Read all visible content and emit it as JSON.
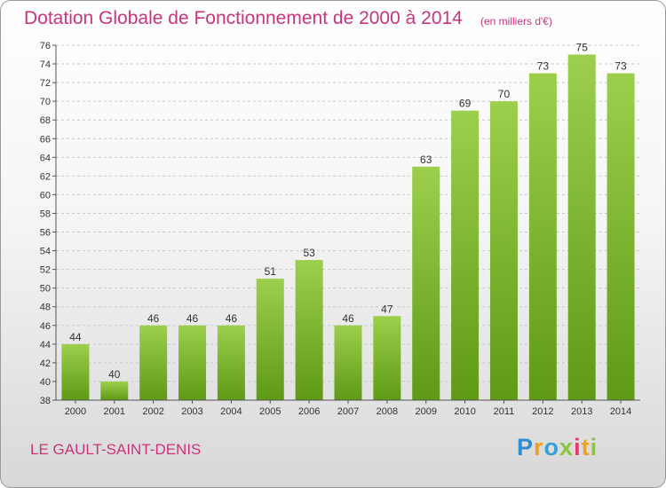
{
  "chart_data": {
    "type": "bar",
    "title": "Dotation Globale de Fonctionnement de 2000 à 2014",
    "subtitle": "(en milliers d'€)",
    "categories": [
      "2000",
      "2001",
      "2002",
      "2003",
      "2004",
      "2005",
      "2006",
      "2007",
      "2008",
      "2009",
      "2010",
      "2011",
      "2012",
      "2013",
      "2014"
    ],
    "values": [
      44,
      40,
      46,
      46,
      46,
      51,
      53,
      46,
      47,
      63,
      69,
      70,
      73,
      75,
      73
    ],
    "ylim": [
      38,
      76
    ],
    "yticks": [
      38,
      40,
      42,
      44,
      46,
      48,
      50,
      52,
      54,
      56,
      58,
      60,
      62,
      64,
      66,
      68,
      70,
      72,
      74,
      76
    ],
    "grid": "horizontal dashed",
    "bar_color_top": "#9ccf4c",
    "bar_color_bottom": "#5e9a16"
  },
  "commune": "LE GAULT-SAINT-DENIS",
  "logo": {
    "text": "Proxiti",
    "letters": [
      "P",
      "r",
      "o",
      "x",
      "i",
      "t",
      "i"
    ],
    "colors": [
      "#2f8fd0",
      "#f0a020",
      "#3aa0d8",
      "#8cc63f",
      "#e23a6e",
      "#f0a020",
      "#8cc63f"
    ]
  }
}
